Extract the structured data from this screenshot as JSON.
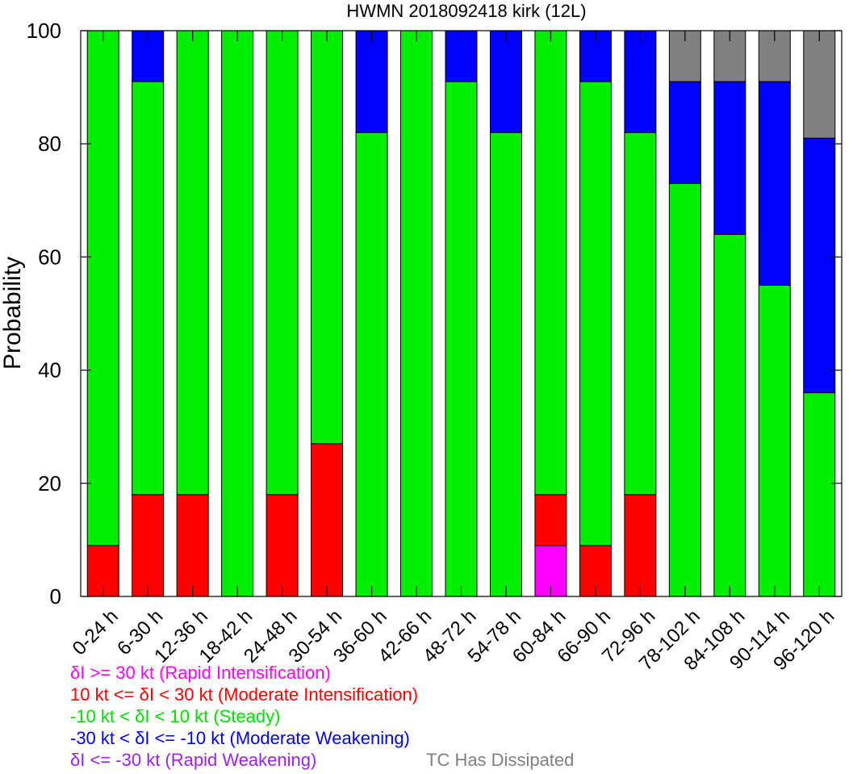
{
  "chart_data": {
    "type": "bar",
    "stacked": true,
    "title": "HWMN 2018092418 kirk (12L)",
    "xlabel": "",
    "ylabel": "Probability",
    "ylim": [
      0,
      100
    ],
    "yticks": [
      "0",
      "20",
      "40",
      "60",
      "80",
      "100"
    ],
    "grid": false,
    "categories": [
      "0-24 h",
      "6-30 h",
      "12-36 h",
      "18-42 h",
      "24-48 h",
      "30-54 h",
      "36-60 h",
      "42-66 h",
      "48-72 h",
      "54-78 h",
      "60-84 h",
      "66-90 h",
      "72-96 h",
      "78-102 h",
      "84-108 h",
      "90-114 h",
      "96-120 h"
    ],
    "series": [
      {
        "name": "δI >= 30 kt (Rapid Intensification)",
        "color": "#ff00ff",
        "values": [
          0,
          0,
          0,
          0,
          0,
          0,
          0,
          0,
          0,
          0,
          9,
          0,
          0,
          0,
          0,
          0,
          0
        ]
      },
      {
        "name": "10 kt <= δI < 30 kt (Moderate Intensification)",
        "color": "#ff0000",
        "values": [
          9,
          18,
          18,
          0,
          18,
          27,
          0,
          0,
          0,
          0,
          9,
          9,
          18,
          0,
          0,
          0,
          0
        ]
      },
      {
        "name": "-10 kt < δI < 10 kt (Steady)",
        "color": "#00ee00",
        "values": [
          91,
          73,
          82,
          100,
          82,
          73,
          82,
          100,
          91,
          82,
          82,
          82,
          64,
          73,
          64,
          55,
          36
        ]
      },
      {
        "name": "-30 kt < δI <= -10 kt (Moderate Weakening)",
        "color": "#0000ff",
        "values": [
          0,
          9,
          0,
          0,
          0,
          0,
          18,
          0,
          9,
          18,
          0,
          9,
          18,
          18,
          27,
          36,
          45
        ]
      },
      {
        "name": "δI <= -30 kt (Rapid Weakening)",
        "color": "#a020f0",
        "values": [
          0,
          0,
          0,
          0,
          0,
          0,
          0,
          0,
          0,
          0,
          0,
          0,
          0,
          0,
          0,
          0,
          0
        ]
      },
      {
        "name": "TC Has Dissipated",
        "color": "#808080",
        "values": [
          0,
          0,
          0,
          0,
          0,
          0,
          0,
          0,
          0,
          0,
          0,
          0,
          0,
          9,
          9,
          9,
          19
        ]
      }
    ]
  },
  "legend": [
    {
      "text": "δI >= 30 kt (Rapid Intensification)",
      "color": "#ff00ff"
    },
    {
      "text": "10 kt <= δI < 30 kt (Moderate Intensification)",
      "color": "#ff0000"
    },
    {
      "text": "-10 kt < δI < 10 kt (Steady)",
      "color": "#00dd00"
    },
    {
      "text": "-30 kt < δI <= -10 kt (Moderate Weakening)",
      "color": "#0000ff"
    },
    {
      "text": "δI <= -30 kt (Rapid Weakening)",
      "color": "#a020f0"
    },
    {
      "text": "TC Has Dissipated",
      "color": "#808080"
    }
  ]
}
